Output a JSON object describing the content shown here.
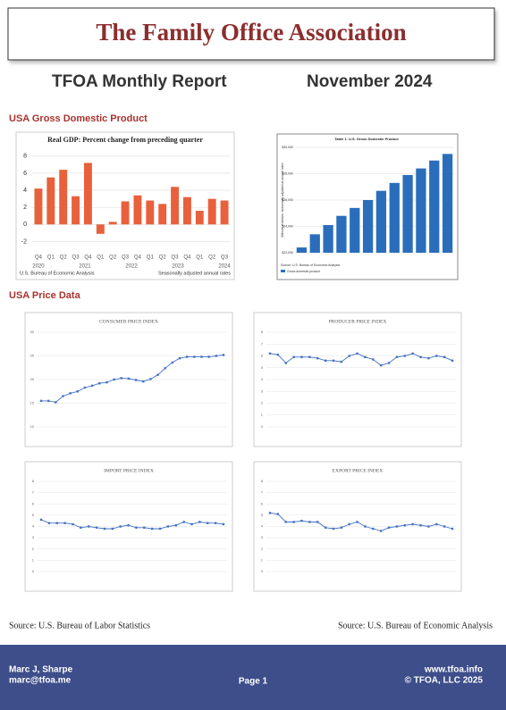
{
  "header": {
    "title": "The Family Office Association"
  },
  "report": {
    "title": "TFOA Monthly Report",
    "date": "November 2024"
  },
  "sections": [
    "USA Gross Domestic Product",
    "USA Price Data"
  ],
  "gdp_chart": {
    "type": "bar",
    "title": "Real GDP:  Percent change from preceding quarter",
    "categories": [
      "Q4",
      "Q1",
      "Q2",
      "Q3",
      "Q4",
      "Q1",
      "Q2",
      "Q3",
      "Q4",
      "Q1",
      "Q2",
      "Q3",
      "Q4",
      "Q1",
      "Q2",
      "Q3"
    ],
    "year_labels": [
      "2020",
      "2021",
      "2022",
      "2023",
      "2024"
    ],
    "values": [
      4.2,
      5.5,
      6.4,
      3.3,
      7.2,
      -1.1,
      0.3,
      2.7,
      3.4,
      2.8,
      2.4,
      4.4,
      3.2,
      1.6,
      3.0,
      2.8
    ],
    "color": "#e8603c",
    "ylim": [
      -3,
      8.5
    ],
    "yticks": [
      -2,
      0,
      2,
      4,
      6,
      8
    ],
    "source": "U.S. Bureau of Economic Analysis",
    "note": "Seasonally adjusted annual rates"
  },
  "gdp_level_chart": {
    "type": "bar",
    "title": "Table 1. U.S. Gross Domestic Product",
    "y_label": "Billions of dollars, seasonally adjusted at annual rates",
    "series_name": "Gross domestic product",
    "values": [
      22400,
      23400,
      24100,
      24800,
      25400,
      26000,
      26700,
      27300,
      27900,
      28400,
      29000,
      29500
    ],
    "color": "#2a6ebb",
    "ylim": [
      22000,
      30000
    ],
    "yticks": [
      {
        "value": 22000,
        "label": "$22,000"
      },
      {
        "value": 24000,
        "label": "$24,000"
      },
      {
        "value": 26000,
        "label": "$26,000"
      },
      {
        "value": 28000,
        "label": "$28,000"
      },
      {
        "value": 30000,
        "label": "$30,000"
      }
    ],
    "source": "Source: U.S. Bureau of Economic Analysis"
  },
  "price_charts": [
    {
      "type": "line",
      "title": "CONSUMER PRICE INDEX",
      "color": "#4472c4",
      "values": [
        15.5,
        15.5,
        15.2,
        16.5,
        17.1,
        17.5,
        18.3,
        18.7,
        19.2,
        19.4,
        20,
        20.3,
        20.2,
        19.9,
        19.6,
        20.1,
        21,
        22.4,
        23.6,
        24.5,
        24.8,
        24.8,
        24.8,
        24.8,
        25,
        25.2
      ],
      "ylim": [
        10,
        30
      ],
      "yticks": [
        10,
        15,
        20,
        25,
        30
      ]
    },
    {
      "type": "line",
      "title": "PRODUCER PRICE INDEX",
      "color": "#4472c4",
      "values": [
        6.2,
        6.1,
        5.4,
        5.9,
        5.9,
        5.9,
        5.8,
        5.6,
        5.6,
        5.5,
        6.0,
        6.2,
        5.9,
        5.7,
        5.2,
        5.4,
        5.9,
        6.0,
        6.2,
        5.9,
        5.8,
        6.0,
        5.9,
        5.6
      ],
      "ylim": [
        0,
        8
      ],
      "yticks": [
        0,
        1,
        2,
        3,
        4,
        5,
        6,
        7,
        8
      ]
    },
    {
      "type": "line",
      "title": "IMPORT PRICE INDEX",
      "color": "#4472c4",
      "values": [
        4.6,
        4.3,
        4.3,
        4.3,
        4.2,
        3.9,
        4.0,
        3.9,
        3.8,
        3.8,
        4.0,
        4.1,
        3.9,
        3.9,
        3.8,
        3.8,
        4.0,
        4.1,
        4.4,
        4.2,
        4.4,
        4.3,
        4.3,
        4.2
      ],
      "ylim": [
        0,
        8
      ],
      "yticks": [
        0,
        1,
        2,
        3,
        4,
        5,
        6,
        7,
        8
      ]
    },
    {
      "type": "line",
      "title": "EXPORT PRICE INDEX",
      "color": "#4472c4",
      "values": [
        5.2,
        5.1,
        4.4,
        4.4,
        4.5,
        4.4,
        4.4,
        3.9,
        3.8,
        3.9,
        4.2,
        4.4,
        4.0,
        3.8,
        3.6,
        3.9,
        4.0,
        4.1,
        4.2,
        4.1,
        4.0,
        4.2,
        4.0,
        3.8
      ],
      "ylim": [
        0,
        8
      ],
      "yticks": [
        0,
        1,
        2,
        3,
        4,
        5,
        6,
        7,
        8
      ]
    }
  ],
  "sources": [
    "Source: U.S. Bureau of Labor Statistics",
    "Source: U.S. Bureau of Economic Analysis"
  ],
  "footer": {
    "name": "Marc J, Sharpe",
    "email": "marc@tfoa.me",
    "page": "Page 1",
    "website": "www.tfoa.info",
    "copyright": "© TFOA, LLC 2025"
  }
}
